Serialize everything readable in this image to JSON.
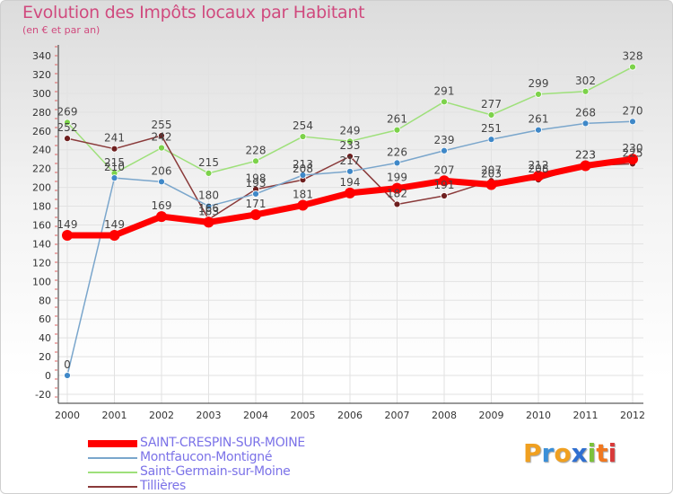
{
  "chart_data": {
    "type": "line",
    "title": "Evolution des Impôts locaux par Habitant",
    "subtitle": "(en € et par an)",
    "xlabel": "",
    "ylabel": "",
    "ylim": [
      -20,
      340
    ],
    "yticks": [
      -20,
      0,
      20,
      40,
      60,
      80,
      100,
      120,
      140,
      160,
      180,
      200,
      220,
      240,
      260,
      280,
      300,
      320,
      340
    ],
    "categories": [
      "2000",
      "2001",
      "2002",
      "2003",
      "2004",
      "2005",
      "2006",
      "2007",
      "2008",
      "2009",
      "2010",
      "2011",
      "2012"
    ],
    "grid": true,
    "legend_position": "bottom-left",
    "series": [
      {
        "name": "SAINT-CRESPIN-SUR-MOINE",
        "color": "#ff0000",
        "marker": "#ff0000",
        "values": [
          149,
          149,
          169,
          163,
          171,
          181,
          194,
          199,
          207,
          203,
          212,
          223,
          230
        ],
        "labels": [
          "149",
          "149",
          "169",
          "163",
          "171",
          "181",
          "194",
          "199",
          "207",
          "203",
          "212",
          "223",
          "230"
        ]
      },
      {
        "name": "Montfaucon-Montigné",
        "color": "#7aa6cc",
        "marker": "#3f88c8",
        "values": [
          0,
          210,
          206,
          180,
          193,
          213,
          217,
          226,
          239,
          251,
          261,
          268,
          270
        ],
        "labels": [
          "0",
          "210",
          "206",
          "180",
          "193",
          "213",
          "217",
          "226",
          "239",
          "251",
          "261",
          "268",
          "270"
        ]
      },
      {
        "name": "Saint-Germain-sur-Moine",
        "color": "#9ee07a",
        "marker": "#7cd24a",
        "values": [
          269,
          215,
          242,
          215,
          228,
          254,
          249,
          261,
          291,
          277,
          299,
          302,
          328
        ],
        "labels": [
          "269",
          "215",
          "242",
          "215",
          "228",
          "254",
          "249",
          "261",
          "291",
          "277",
          "299",
          "302",
          "328"
        ]
      },
      {
        "name": "Tillières",
        "color": "#8a3a3a",
        "marker": "#6e1f1f",
        "values": [
          252,
          241,
          255,
          166,
          198,
          208,
          233,
          182,
          191,
          207,
          208,
          223,
          225
        ],
        "labels": [
          "252",
          "241",
          "255",
          "166",
          "198",
          "208",
          "233",
          "182",
          "191",
          "207",
          "208",
          "223",
          "225"
        ]
      }
    ]
  },
  "logo": {
    "letters": [
      "P",
      "r",
      "o",
      "x",
      "i",
      "t",
      "i"
    ]
  }
}
